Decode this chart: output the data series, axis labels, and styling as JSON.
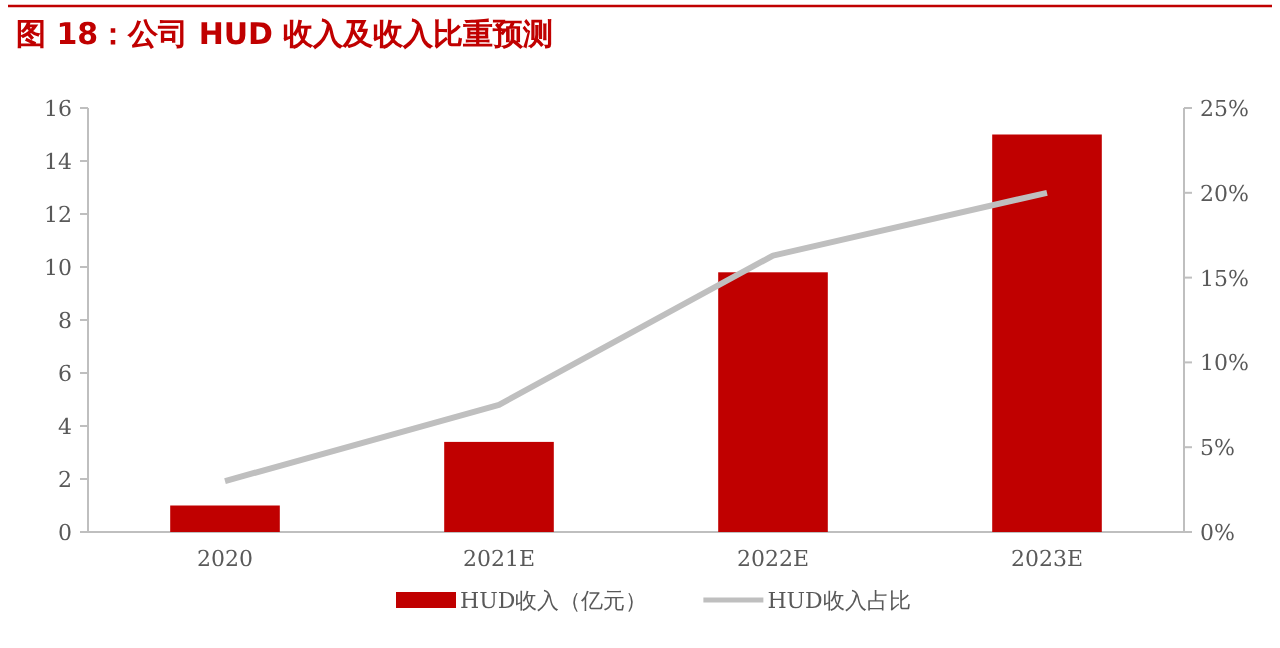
{
  "chart_data": {
    "type": "bar",
    "title": "图 18：公司 HUD 收入及收入比重预测",
    "categories": [
      "2020",
      "2021E",
      "2022E",
      "2023E"
    ],
    "series": [
      {
        "name": "HUD收入（亿元）",
        "color": "#c00000",
        "values": [
          1.0,
          3.4,
          9.8,
          15.0
        ]
      },
      {
        "name": "HUD收入占比",
        "type": "line",
        "axis": "y2",
        "color": "#bfbfbf",
        "values": [
          3,
          7.5,
          16.3,
          20
        ]
      }
    ],
    "ylim": [
      0,
      16
    ],
    "yticks": [
      0,
      2,
      4,
      6,
      8,
      10,
      12,
      14,
      16
    ],
    "y2lim": [
      0,
      25
    ],
    "y2ticks": [
      {
        "value": 0,
        "label": "0%"
      },
      {
        "value": 5,
        "label": "5%"
      },
      {
        "value": 10,
        "label": "10%"
      },
      {
        "value": 15,
        "label": "15%"
      },
      {
        "value": 20,
        "label": "20%"
      },
      {
        "value": 25,
        "label": "25%"
      }
    ],
    "legend": "bottom"
  }
}
